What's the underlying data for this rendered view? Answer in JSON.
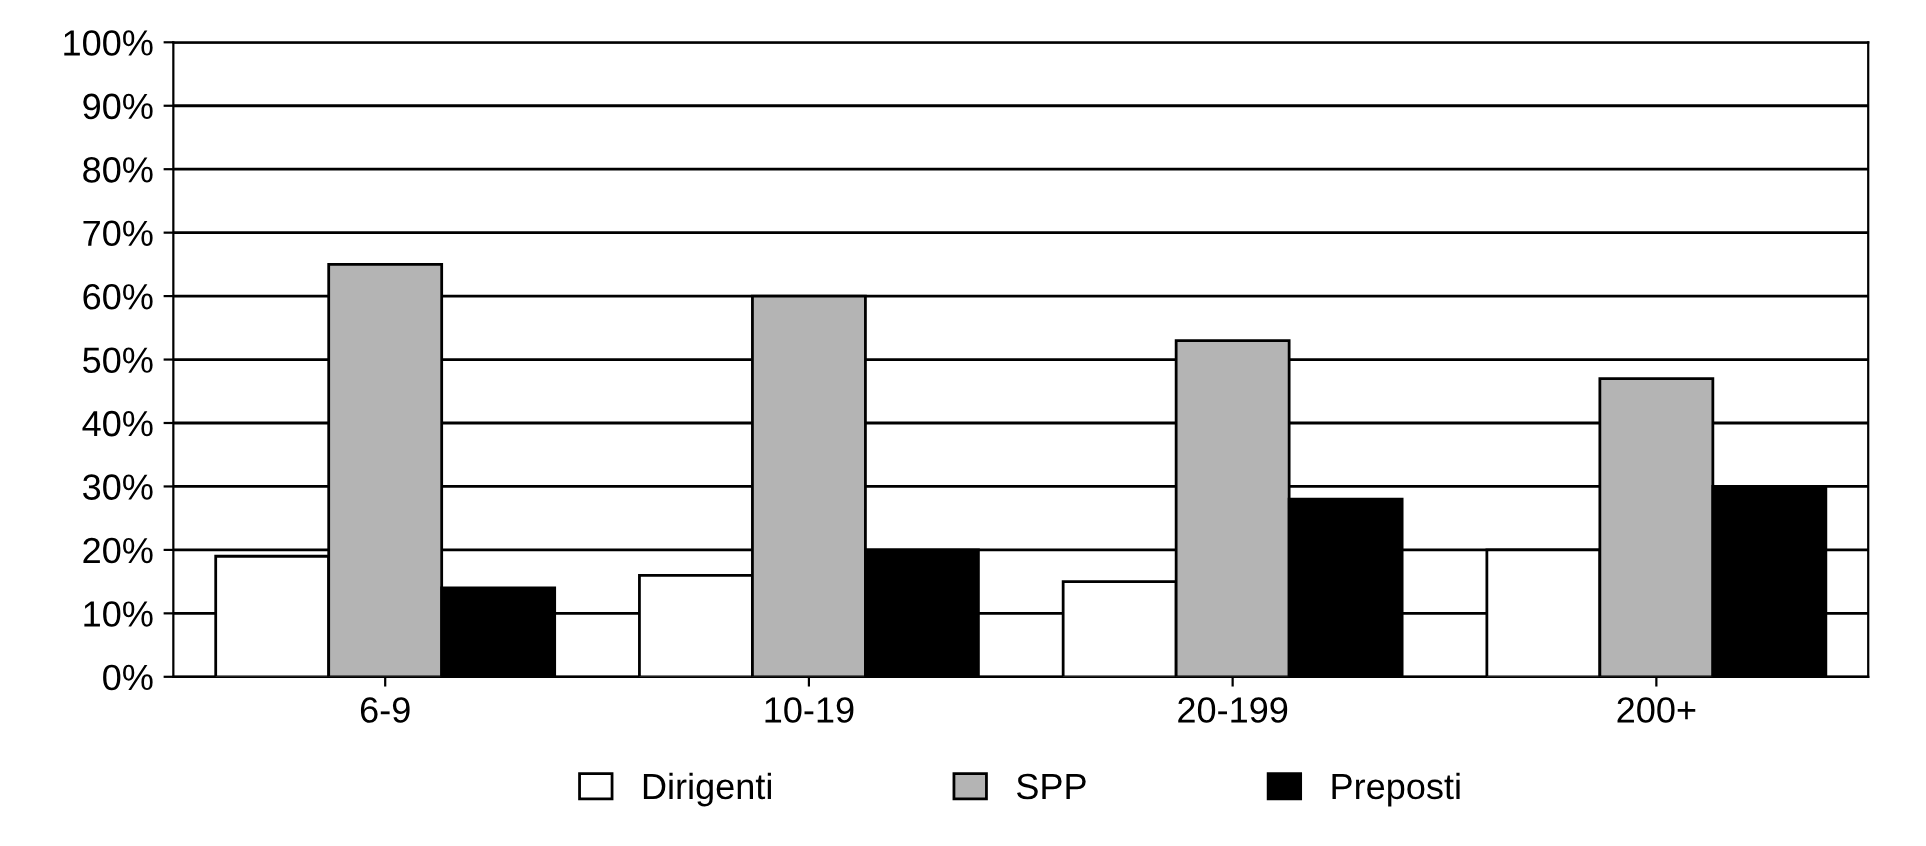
{
  "chart_data": {
    "type": "bar",
    "categories": [
      "6-9",
      "10-19",
      "20-199",
      "200+"
    ],
    "series": [
      {
        "name": "Dirigenti",
        "color": "#ffffff",
        "values": [
          19,
          16,
          15,
          20
        ]
      },
      {
        "name": "SPP",
        "color": "#b4b4b4",
        "values": [
          65,
          60,
          53,
          47
        ]
      },
      {
        "name": "Preposti",
        "color": "#000000",
        "values": [
          14,
          20,
          28,
          30
        ]
      }
    ],
    "ylim": [
      0,
      100
    ],
    "yticks": [
      {
        "value": 0,
        "label": "0%"
      },
      {
        "value": 10,
        "label": "10%"
      },
      {
        "value": 20,
        "label": "20%"
      },
      {
        "value": 30,
        "label": "30%"
      },
      {
        "value": 40,
        "label": "40%"
      },
      {
        "value": 50,
        "label": "50%"
      },
      {
        "value": 60,
        "label": "60%"
      },
      {
        "value": 70,
        "label": "70%"
      },
      {
        "value": 80,
        "label": "80%"
      },
      {
        "value": 90,
        "label": "90%"
      },
      {
        "value": 100,
        "label": "100%"
      }
    ],
    "grid": "y",
    "legend": "bottom"
  }
}
